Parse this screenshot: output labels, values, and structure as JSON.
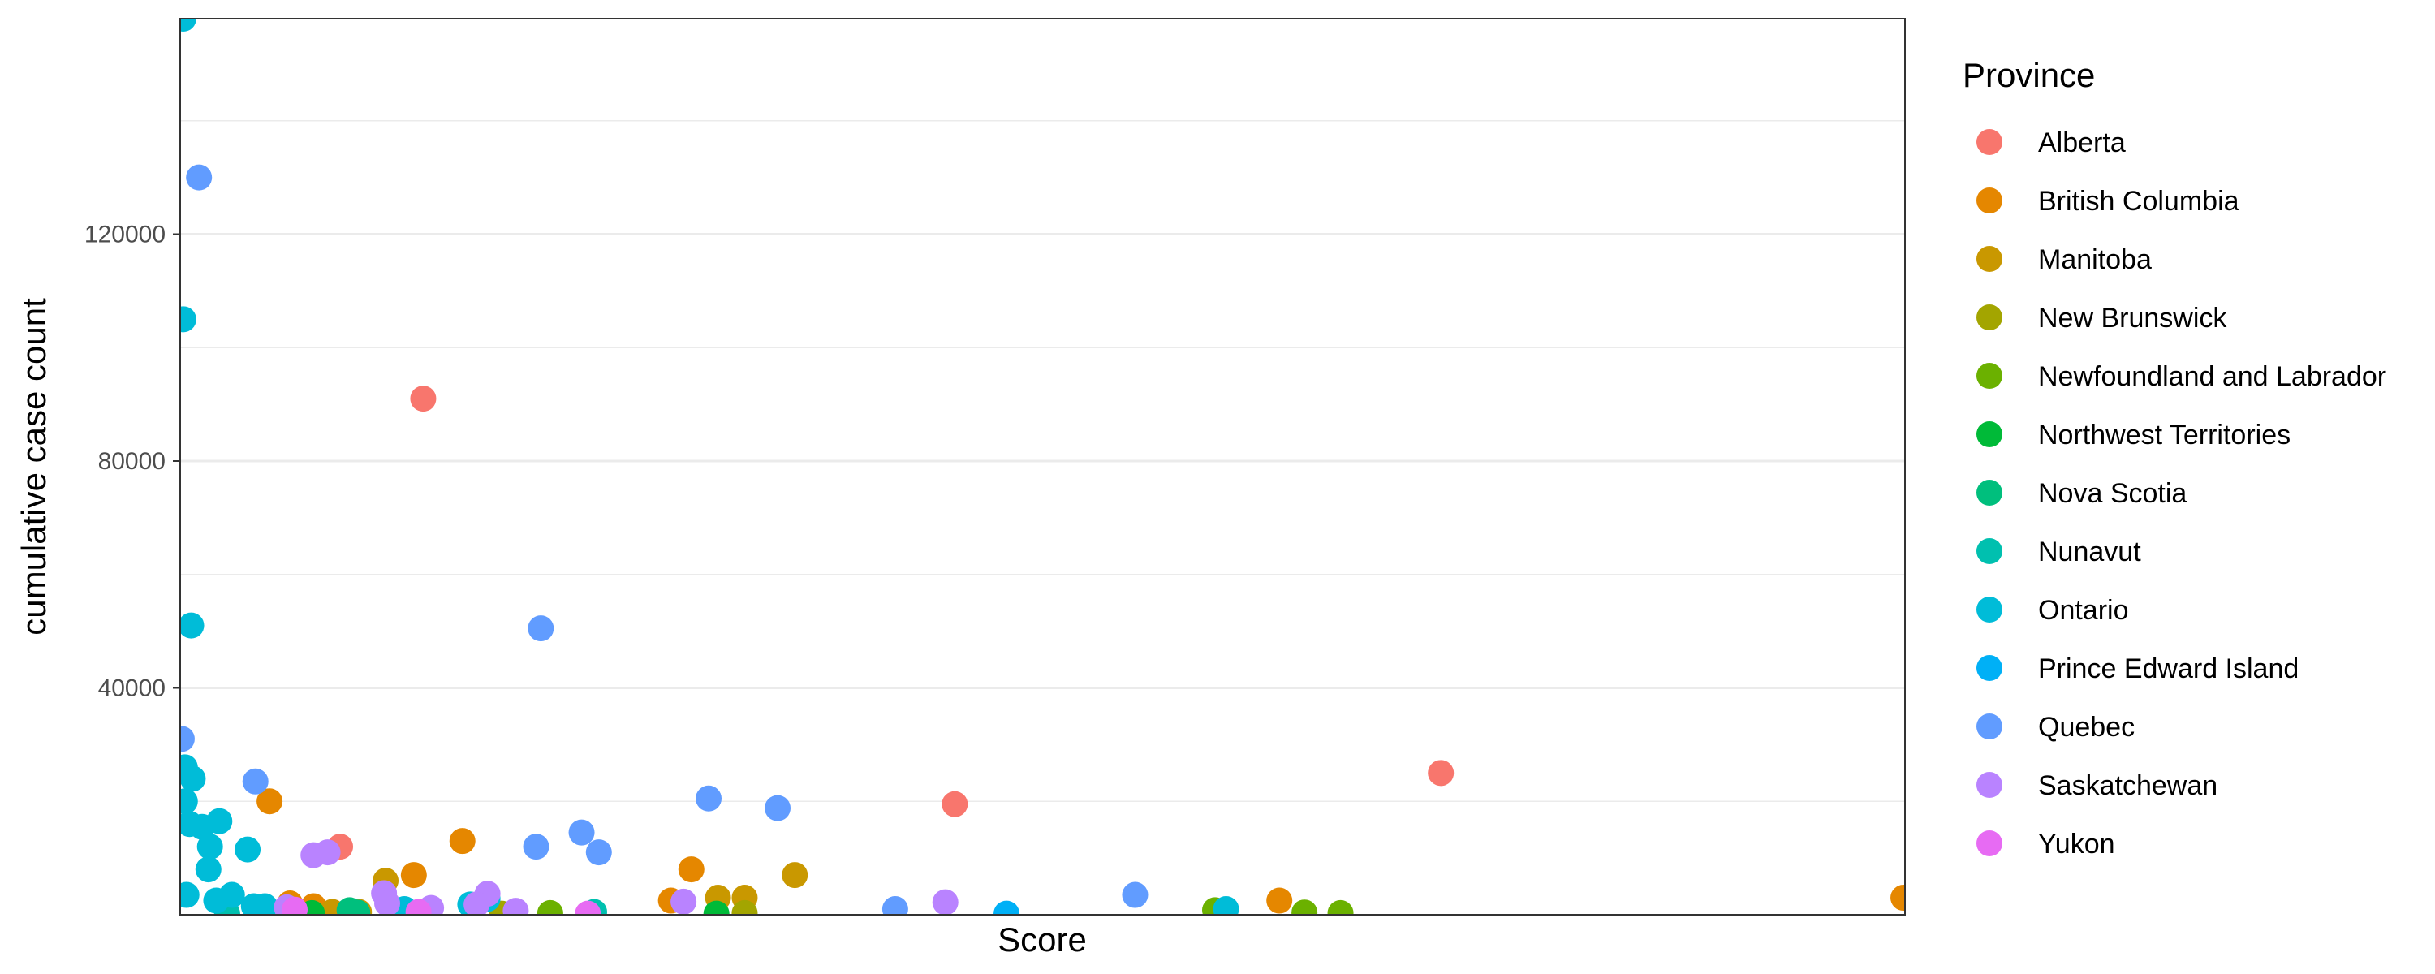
{
  "chart_data": {
    "type": "scatter",
    "title": "",
    "xlabel": "Score",
    "ylabel": "cumulative case count",
    "xlim": [
      0,
      110
    ],
    "ylim": [
      0,
      158000
    ],
    "yticks": [
      40000,
      80000,
      120000
    ],
    "grid": "horizontal",
    "legend": {
      "title": "Province",
      "position": "right"
    },
    "series": [
      {
        "name": "Alberta",
        "color": "#F8766D",
        "points": [
          [
            15.5,
            91000
          ],
          [
            49.4,
            19500
          ],
          [
            80.4,
            25000
          ],
          [
            10.2,
            12000
          ]
        ]
      },
      {
        "name": "British Columbia",
        "color": "#E58700",
        "points": [
          [
            5.7,
            20000
          ],
          [
            18.0,
            13000
          ],
          [
            32.6,
            8000
          ],
          [
            14.9,
            7000
          ],
          [
            70.1,
            2500
          ],
          [
            109.9,
            3000
          ],
          [
            7.0,
            2000
          ],
          [
            8.5,
            1500
          ],
          [
            31.3,
            2500
          ]
        ]
      },
      {
        "name": "Manitoba",
        "color": "#C99800",
        "points": [
          [
            13.1,
            6000
          ],
          [
            39.2,
            7000
          ],
          [
            36.0,
            3000
          ],
          [
            34.3,
            3000
          ],
          [
            9.7,
            500
          ],
          [
            11.4,
            500
          ]
        ]
      },
      {
        "name": "New Brunswick",
        "color": "#A3A500",
        "points": [
          [
            36.0,
            300
          ],
          [
            20.5,
            200
          ]
        ]
      },
      {
        "name": "Newfoundland and Labrador",
        "color": "#6BB100",
        "points": [
          [
            23.6,
            300
          ],
          [
            66.0,
            800
          ],
          [
            71.7,
            400
          ],
          [
            74.0,
            300
          ]
        ]
      },
      {
        "name": "Northwest Territories",
        "color": "#00BA38",
        "points": [
          [
            8.4,
            300
          ],
          [
            34.2,
            200
          ]
        ]
      },
      {
        "name": "Nova Scotia",
        "color": "#00BF7D",
        "points": [
          [
            10.8,
            800
          ],
          [
            11.3,
            400
          ]
        ]
      },
      {
        "name": "Nunavut",
        "color": "#00C0AF",
        "points": [
          [
            26.4,
            500
          ],
          [
            3.0,
            200
          ]
        ]
      },
      {
        "name": "Ontario",
        "color": "#00BCD8",
        "points": [
          [
            0.2,
            158000
          ],
          [
            0.2,
            105000
          ],
          [
            0.7,
            51000
          ],
          [
            0.3,
            26000
          ],
          [
            0.8,
            24000
          ],
          [
            0.3,
            20000
          ],
          [
            0.6,
            16000
          ],
          [
            1.4,
            15500
          ],
          [
            2.5,
            16500
          ],
          [
            1.9,
            12000
          ],
          [
            4.3,
            11500
          ],
          [
            1.8,
            8000
          ],
          [
            0.4,
            3500
          ],
          [
            3.3,
            3500
          ],
          [
            2.3,
            2500
          ],
          [
            4.7,
            1500
          ],
          [
            5.4,
            1500
          ],
          [
            14.3,
            1000
          ],
          [
            18.5,
            1800
          ],
          [
            19.6,
            2800
          ],
          [
            66.7,
            1000
          ]
        ]
      },
      {
        "name": "Prince Edward Island",
        "color": "#00B0F6",
        "points": [
          [
            52.7,
            200
          ]
        ]
      },
      {
        "name": "Quebec",
        "color": "#619CFF",
        "points": [
          [
            1.2,
            130000
          ],
          [
            23.0,
            50500
          ],
          [
            0.1,
            31000
          ],
          [
            4.8,
            23500
          ],
          [
            33.7,
            20500
          ],
          [
            38.1,
            18800
          ],
          [
            22.7,
            12000
          ],
          [
            25.6,
            14500
          ],
          [
            26.7,
            11000
          ],
          [
            45.6,
            1000
          ],
          [
            60.9,
            3500
          ]
        ]
      },
      {
        "name": "Saskatchewan",
        "color": "#B983FF",
        "points": [
          [
            8.5,
            10500
          ],
          [
            9.4,
            11000
          ],
          [
            13.0,
            3800
          ],
          [
            19.6,
            3700
          ],
          [
            13.2,
            2000
          ],
          [
            16.0,
            1200
          ],
          [
            18.9,
            1800
          ],
          [
            32.1,
            2300
          ],
          [
            48.8,
            2200
          ],
          [
            6.8,
            1300
          ],
          [
            21.4,
            700
          ]
        ]
      },
      {
        "name": "Yukon",
        "color": "#E76BF3",
        "points": [
          [
            26.0,
            200
          ],
          [
            15.2,
            500
          ],
          [
            7.3,
            900
          ]
        ]
      }
    ]
  }
}
